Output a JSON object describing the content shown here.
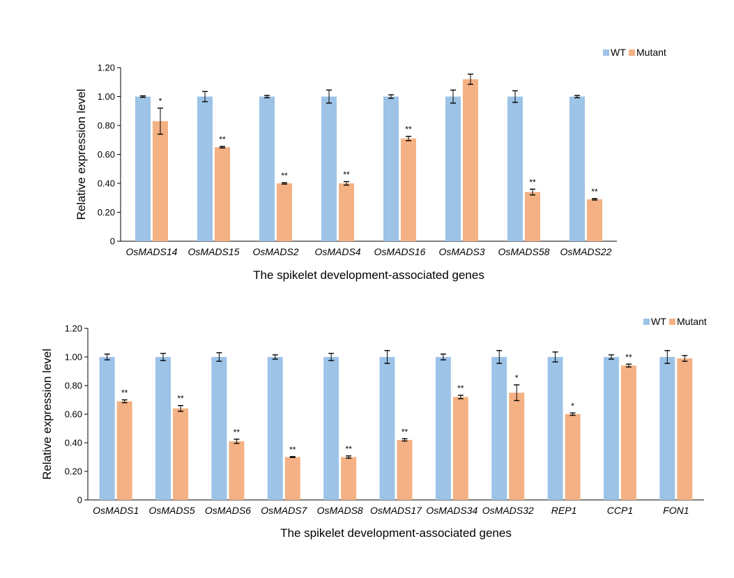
{
  "chart_data": [
    {
      "type": "bar",
      "title": "",
      "xlabel": "The spikelet development-associated genes",
      "ylabel": "Relative expression level",
      "ylim": [
        0,
        1.2
      ],
      "yticks": [
        "0",
        "0.20",
        "0.40",
        "0.60",
        "0.80",
        "1.00",
        "1.20"
      ],
      "legend_position": "top-right",
      "categories": [
        "OsMADS14",
        "OsMADS15",
        "OsMADS2",
        "OsMADS4",
        "OsMADS16",
        "OsMADS3",
        "OsMADS58",
        "OsMADS22"
      ],
      "series": [
        {
          "name": "WT",
          "color": "#9dc3e6",
          "values": [
            1.0,
            1.0,
            1.0,
            1.0,
            1.0,
            1.0,
            1.0,
            1.0
          ],
          "errors": [
            0.005,
            0.035,
            0.008,
            0.045,
            0.012,
            0.045,
            0.04,
            0.008
          ]
        },
        {
          "name": "Mutant",
          "color": "#f4b183",
          "values": [
            0.83,
            0.65,
            0.4,
            0.4,
            0.71,
            1.12,
            0.34,
            0.29
          ],
          "errors": [
            0.09,
            0.005,
            0.005,
            0.012,
            0.015,
            0.035,
            0.02,
            0.005
          ],
          "significance": [
            "*",
            "**",
            "**",
            "**",
            "**",
            "",
            "**",
            "**"
          ]
        }
      ]
    },
    {
      "type": "bar",
      "title": "",
      "xlabel": "The spikelet development-associated genes",
      "ylabel": "Relative expression level",
      "ylim": [
        0,
        1.2
      ],
      "yticks": [
        "0",
        "0.20",
        "0.40",
        "0.60",
        "0.80",
        "1.00",
        "1.20"
      ],
      "legend_position": "top-right",
      "categories": [
        "OsMADS1",
        "OsMADS5",
        "OsMADS6",
        "OsMADS7",
        "OsMADS8",
        "OsMADS17",
        "OsMADS34",
        "OsMADS32",
        "REP1",
        "CCP1",
        "FON1"
      ],
      "series": [
        {
          "name": "WT",
          "color": "#9dc3e6",
          "values": [
            1.0,
            1.0,
            1.0,
            1.0,
            1.0,
            1.0,
            1.0,
            1.0,
            1.0,
            1.0,
            1.0
          ],
          "errors": [
            0.02,
            0.025,
            0.03,
            0.015,
            0.025,
            0.045,
            0.02,
            0.045,
            0.035,
            0.015,
            0.045
          ]
        },
        {
          "name": "Mutant",
          "color": "#f4b183",
          "values": [
            0.69,
            0.64,
            0.41,
            0.3,
            0.3,
            0.42,
            0.72,
            0.75,
            0.6,
            0.94,
            0.99
          ],
          "errors": [
            0.01,
            0.02,
            0.015,
            0.003,
            0.008,
            0.008,
            0.012,
            0.055,
            0.008,
            0.01,
            0.02
          ],
          "significance": [
            "**",
            "**",
            "**",
            "**",
            "**",
            "**",
            "**",
            "*",
            "*",
            "**",
            ""
          ]
        }
      ]
    }
  ]
}
